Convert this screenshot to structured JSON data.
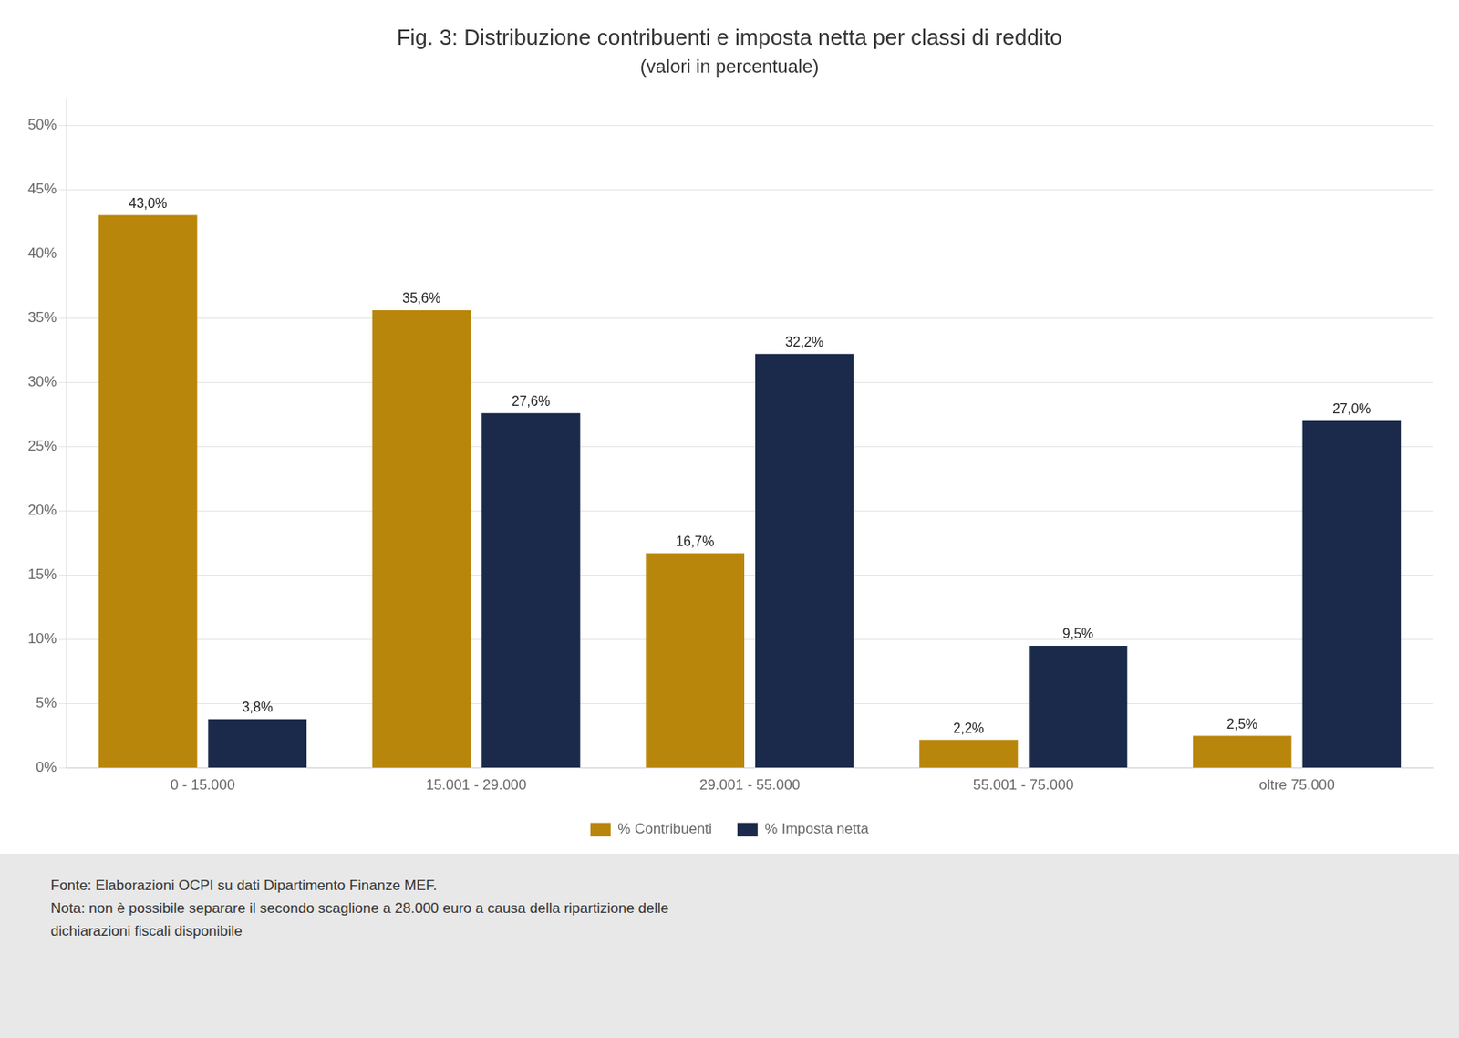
{
  "chart_data": {
    "type": "bar",
    "title": "Fig. 3: Distribuzione contribuenti e imposta netta per classi di reddito",
    "subtitle": "(valori in percentuale)",
    "categories": [
      "0 - 15.000",
      "15.001 - 29.000",
      "29.001 - 55.000",
      "55.001 - 75.000",
      "oltre 75.000"
    ],
    "series": [
      {
        "name": "% Contribuenti",
        "color": "#B8860B",
        "values": [
          43.0,
          35.6,
          16.7,
          2.2,
          2.5
        ],
        "value_labels": [
          "43,0%",
          "35,6%",
          "16,7%",
          "2,2%",
          "2,5%"
        ]
      },
      {
        "name": "% Imposta netta",
        "color": "#1B2A4A",
        "values": [
          3.8,
          27.6,
          32.2,
          9.5,
          27.0
        ],
        "value_labels": [
          "3,8%",
          "27,6%",
          "32,2%",
          "9,5%",
          "27,0%"
        ]
      }
    ],
    "ylim": [
      0,
      52
    ],
    "yticks": [
      {
        "value": 0,
        "label": "0%"
      },
      {
        "value": 5,
        "label": "5%"
      },
      {
        "value": 10,
        "label": "10%"
      },
      {
        "value": 15,
        "label": "15%"
      },
      {
        "value": 20,
        "label": "20%"
      },
      {
        "value": 25,
        "label": "25%"
      },
      {
        "value": 30,
        "label": "30%"
      },
      {
        "value": 35,
        "label": "35%"
      },
      {
        "value": 40,
        "label": "40%"
      },
      {
        "value": 45,
        "label": "45%"
      },
      {
        "value": 50,
        "label": "50%"
      }
    ],
    "grid": true,
    "legend": "bottom",
    "data_labels": true,
    "annotations": [
      "Fonte: Elaborazioni OCPI su dati Dipartimento Finanze MEF.",
      "Nota: non è possibile separare il secondo scaglione a 28.000 euro a causa della ripartizione delle",
      "dichiarazioni fiscali disponibile"
    ]
  }
}
